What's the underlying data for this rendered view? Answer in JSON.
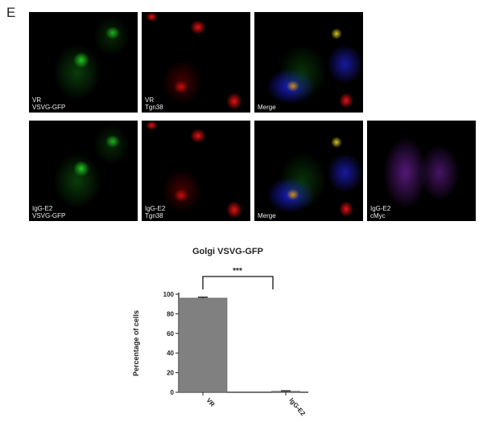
{
  "panel_letter": "E",
  "rows": [
    {
      "panels": [
        {
          "caption": [
            "VR",
            "VSVG-GFP"
          ],
          "channel": "green"
        },
        {
          "caption": [
            "VR",
            "Tgn38"
          ],
          "channel": "red"
        },
        {
          "caption": [
            "Merge"
          ],
          "channel": "merge"
        }
      ]
    },
    {
      "panels": [
        {
          "caption": [
            "IgG-E2",
            "VSVG-GFP"
          ],
          "channel": "green"
        },
        {
          "caption": [
            "IgG-E2",
            "Tgn38"
          ],
          "channel": "red"
        },
        {
          "caption": [
            "Merge"
          ],
          "channel": "merge"
        },
        {
          "caption": [
            "IgG-E2",
            "cMyc"
          ],
          "channel": "purple"
        }
      ]
    }
  ],
  "chart_data": {
    "type": "bar",
    "title": "Golgi VSVG-GFP",
    "ylabel": "Percentage of cells",
    "xlabel": "",
    "categories": [
      "VR",
      "IgG-E2"
    ],
    "values": [
      96,
      1
    ],
    "errors": [
      1,
      0.5
    ],
    "ylim": [
      0,
      100
    ],
    "yticks": [
      0,
      20,
      40,
      60,
      80,
      100
    ],
    "significance": "***",
    "bar_color": "#808080"
  }
}
